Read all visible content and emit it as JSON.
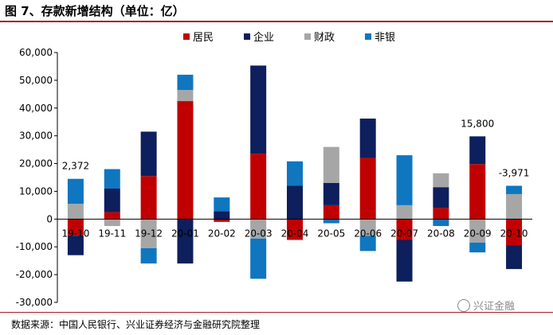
{
  "title": "图 7、存款新增结构（单位：亿）",
  "source": "数据来源：中国人民银行、兴业证券经济与金融研究院整理",
  "watermark": "兴证金融",
  "colors": {
    "title_rule": "#a9192c",
    "居民": "#c00000",
    "企业": "#0d1f5c",
    "财政": "#a6a6a6",
    "非银": "#0f76c0"
  },
  "chart_data": {
    "type": "bar",
    "stacked": true,
    "categories": [
      "19-10",
      "19-11",
      "19-12",
      "20-01",
      "20-02",
      "20-03",
      "20-04",
      "20-05",
      "20-06",
      "20-07",
      "20-08",
      "20-09",
      "20-10"
    ],
    "series": [
      {
        "name": "居民",
        "color": "#c00000",
        "values": [
          -6000,
          2500,
          15500,
          42500,
          -1000,
          23500,
          -7500,
          5000,
          22000,
          -7500,
          4000,
          19800,
          -9500
        ]
      },
      {
        "name": "企业",
        "color": "#0d1f5c",
        "values": [
          -7000,
          8500,
          16000,
          -16000,
          2800,
          31800,
          12000,
          8000,
          14200,
          -15000,
          7500,
          10000,
          -8500
        ]
      },
      {
        "name": "财政",
        "color": "#a6a6a6",
        "values": [
          5500,
          -2500,
          -10500,
          4000,
          0,
          -7000,
          0,
          13000,
          -6000,
          5000,
          5000,
          -8500,
          9000
        ]
      },
      {
        "name": "非银",
        "color": "#0f76c0",
        "values": [
          9000,
          7000,
          -5500,
          5500,
          5000,
          -14500,
          8800,
          -1500,
          -5500,
          18000,
          -2500,
          -3500,
          3000
        ]
      }
    ],
    "annotations": [
      {
        "category": "19-10",
        "text": "2,372"
      },
      {
        "category": "20-09",
        "text": "15,800"
      },
      {
        "category": "20-10",
        "text": "-3,971"
      }
    ],
    "ylim": [
      -30000,
      60000
    ],
    "yticks": [
      -30000,
      -20000,
      -10000,
      0,
      10000,
      20000,
      30000,
      40000,
      50000,
      60000
    ],
    "ytick_labels": [
      "-30,000",
      "-20,000",
      "-10,000",
      "0",
      "10,000",
      "20,000",
      "30,000",
      "40,000",
      "50,000",
      "60,000"
    ],
    "xlabel": "",
    "ylabel": "",
    "grid": false,
    "legend_position": "top-center"
  }
}
